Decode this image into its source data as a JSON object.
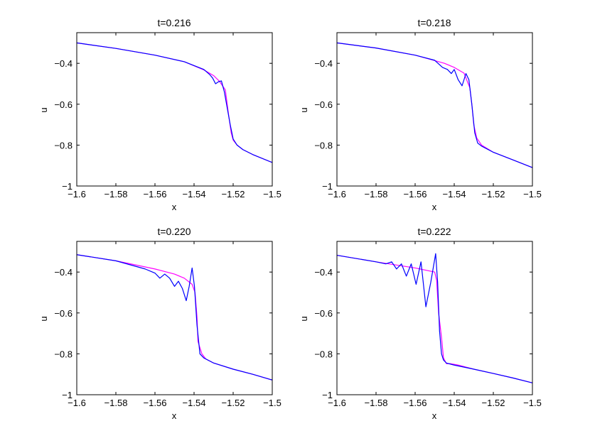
{
  "figure": {
    "panels": [
      {
        "title": "t=0.216",
        "xlabel": "x",
        "ylabel": "u"
      },
      {
        "title": "t=0.218",
        "xlabel": "x",
        "ylabel": "u"
      },
      {
        "title": "t=0.220",
        "xlabel": "x",
        "ylabel": "u"
      },
      {
        "title": "t=0.222",
        "xlabel": "x",
        "ylabel": "u"
      }
    ],
    "colors": {
      "magenta": "#ff00ff",
      "blue": "#0000ff",
      "axes": "#000000"
    }
  },
  "chart_data": [
    {
      "type": "line",
      "title": "t=0.216",
      "xlabel": "x",
      "ylabel": "u",
      "xlim": [
        -1.6,
        -1.5
      ],
      "ylim": [
        -1,
        -0.25
      ],
      "xticks": [
        -1.6,
        -1.58,
        -1.56,
        -1.54,
        -1.52,
        -1.5
      ],
      "xtick_labels": [
        "−1.6",
        "−1.58",
        "−1.56",
        "−1.54",
        "−1.52",
        "−1.5"
      ],
      "yticks": [
        -1,
        -0.8,
        -0.6,
        -0.4
      ],
      "ytick_labels": [
        "−1",
        "−0.8",
        "−0.6",
        "−0.4"
      ],
      "series": [
        {
          "color": "#ff00ff",
          "x": [
            -1.6,
            -1.58,
            -1.56,
            -1.545,
            -1.535,
            -1.53,
            -1.527,
            -1.524,
            -1.5225,
            -1.521,
            -1.52,
            -1.518,
            -1.515,
            -1.51,
            -1.5
          ],
          "y": [
            -0.3,
            -0.327,
            -0.36,
            -0.392,
            -0.432,
            -0.46,
            -0.488,
            -0.53,
            -0.64,
            -0.74,
            -0.775,
            -0.8,
            -0.822,
            -0.846,
            -0.885
          ]
        },
        {
          "color": "#0000ff",
          "x": [
            -1.6,
            -1.58,
            -1.56,
            -1.545,
            -1.535,
            -1.532,
            -1.5305,
            -1.529,
            -1.5275,
            -1.526,
            -1.5245,
            -1.523,
            -1.5215,
            -1.52,
            -1.518,
            -1.515,
            -1.51,
            -1.5
          ],
          "y": [
            -0.3,
            -0.327,
            -0.36,
            -0.392,
            -0.43,
            -0.455,
            -0.472,
            -0.5,
            -0.49,
            -0.486,
            -0.54,
            -0.62,
            -0.7,
            -0.77,
            -0.8,
            -0.822,
            -0.846,
            -0.885
          ]
        }
      ]
    },
    {
      "type": "line",
      "title": "t=0.218",
      "xlabel": "x",
      "ylabel": "u",
      "xlim": [
        -1.6,
        -1.5
      ],
      "ylim": [
        -1,
        -0.25
      ],
      "xticks": [
        -1.6,
        -1.58,
        -1.56,
        -1.54,
        -1.52,
        -1.5
      ],
      "xtick_labels": [
        "−1.6",
        "−1.58",
        "−1.56",
        "−1.54",
        "−1.52",
        "−1.5"
      ],
      "yticks": [
        -1,
        -0.8,
        -0.6,
        -0.4
      ],
      "ytick_labels": [
        "−1",
        "−0.8",
        "−0.6",
        "−0.4"
      ],
      "series": [
        {
          "color": "#ff00ff",
          "x": [
            -1.6,
            -1.58,
            -1.56,
            -1.545,
            -1.54,
            -1.535,
            -1.532,
            -1.531,
            -1.53,
            -1.5285,
            -1.526,
            -1.52,
            -1.51,
            -1.5
          ],
          "y": [
            -0.3,
            -0.325,
            -0.36,
            -0.4,
            -0.42,
            -0.448,
            -0.52,
            -0.6,
            -0.7,
            -0.765,
            -0.8,
            -0.835,
            -0.872,
            -0.91
          ]
        },
        {
          "color": "#0000ff",
          "x": [
            -1.6,
            -1.58,
            -1.56,
            -1.55,
            -1.546,
            -1.5435,
            -1.5415,
            -1.54,
            -1.538,
            -1.536,
            -1.534,
            -1.5325,
            -1.531,
            -1.5295,
            -1.528,
            -1.526,
            -1.52,
            -1.51,
            -1.5
          ],
          "y": [
            -0.3,
            -0.325,
            -0.36,
            -0.385,
            -0.42,
            -0.43,
            -0.45,
            -0.43,
            -0.48,
            -0.51,
            -0.45,
            -0.48,
            -0.6,
            -0.74,
            -0.79,
            -0.805,
            -0.835,
            -0.872,
            -0.91
          ]
        }
      ]
    },
    {
      "type": "line",
      "title": "t=0.220",
      "xlabel": "x",
      "ylabel": "u",
      "xlim": [
        -1.6,
        -1.5
      ],
      "ylim": [
        -1,
        -0.25
      ],
      "xticks": [
        -1.6,
        -1.58,
        -1.56,
        -1.54,
        -1.52,
        -1.5
      ],
      "xtick_labels": [
        "−1.6",
        "−1.58",
        "−1.56",
        "−1.54",
        "−1.52",
        "−1.5"
      ],
      "yticks": [
        -1,
        -0.8,
        -0.6,
        -0.4
      ],
      "ytick_labels": [
        "−1",
        "−0.8",
        "−0.6",
        "−0.4"
      ],
      "series": [
        {
          "color": "#ff00ff",
          "x": [
            -1.6,
            -1.58,
            -1.56,
            -1.55,
            -1.545,
            -1.541,
            -1.5395,
            -1.5385,
            -1.538,
            -1.536,
            -1.534,
            -1.53,
            -1.52,
            -1.51,
            -1.5
          ],
          "y": [
            -0.315,
            -0.345,
            -0.385,
            -0.41,
            -0.43,
            -0.46,
            -0.5,
            -0.62,
            -0.74,
            -0.8,
            -0.825,
            -0.845,
            -0.875,
            -0.9,
            -0.928
          ]
        },
        {
          "color": "#0000ff",
          "x": [
            -1.6,
            -1.58,
            -1.565,
            -1.56,
            -1.5575,
            -1.555,
            -1.5525,
            -1.55,
            -1.548,
            -1.546,
            -1.544,
            -1.5425,
            -1.541,
            -1.5398,
            -1.5385,
            -1.537,
            -1.535,
            -1.532,
            -1.53,
            -1.52,
            -1.51,
            -1.5
          ],
          "y": [
            -0.315,
            -0.345,
            -0.385,
            -0.405,
            -0.43,
            -0.41,
            -0.43,
            -0.47,
            -0.445,
            -0.48,
            -0.54,
            -0.47,
            -0.38,
            -0.47,
            -0.66,
            -0.8,
            -0.82,
            -0.835,
            -0.845,
            -0.875,
            -0.9,
            -0.928
          ]
        }
      ]
    },
    {
      "type": "line",
      "title": "t=0.222",
      "xlabel": "x",
      "ylabel": "u",
      "xlim": [
        -1.6,
        -1.5
      ],
      "ylim": [
        -1,
        -0.25
      ],
      "xticks": [
        -1.6,
        -1.58,
        -1.56,
        -1.54,
        -1.52,
        -1.5
      ],
      "xtick_labels": [
        "−1.6",
        "−1.58",
        "−1.56",
        "−1.54",
        "−1.52",
        "−1.5"
      ],
      "yticks": [
        -1,
        -0.8,
        -0.6,
        -0.4
      ],
      "ytick_labels": [
        "−1",
        "−0.8",
        "−0.6",
        "−0.4"
      ],
      "series": [
        {
          "color": "#ff00ff",
          "x": [
            -1.6,
            -1.58,
            -1.56,
            -1.55,
            -1.549,
            -1.548,
            -1.5465,
            -1.5455,
            -1.544,
            -1.542,
            -1.538,
            -1.53,
            -1.52,
            -1.51,
            -1.5
          ],
          "y": [
            -0.318,
            -0.35,
            -0.38,
            -0.4,
            -0.44,
            -0.6,
            -0.72,
            -0.82,
            -0.848,
            -0.848,
            -0.855,
            -0.875,
            -0.896,
            -0.918,
            -0.942
          ]
        },
        {
          "color": "#0000ff",
          "x": [
            -1.6,
            -1.58,
            -1.575,
            -1.572,
            -1.5695,
            -1.567,
            -1.5645,
            -1.562,
            -1.5595,
            -1.557,
            -1.5545,
            -1.552,
            -1.5495,
            -1.5485,
            -1.5475,
            -1.5465,
            -1.5455,
            -1.544,
            -1.54,
            -1.53,
            -1.52,
            -1.51,
            -1.5
          ],
          "y": [
            -0.318,
            -0.35,
            -0.36,
            -0.35,
            -0.385,
            -0.36,
            -0.42,
            -0.36,
            -0.46,
            -0.35,
            -0.57,
            -0.45,
            -0.31,
            -0.45,
            -0.69,
            -0.8,
            -0.83,
            -0.845,
            -0.855,
            -0.875,
            -0.896,
            -0.918,
            -0.942
          ]
        }
      ]
    }
  ]
}
